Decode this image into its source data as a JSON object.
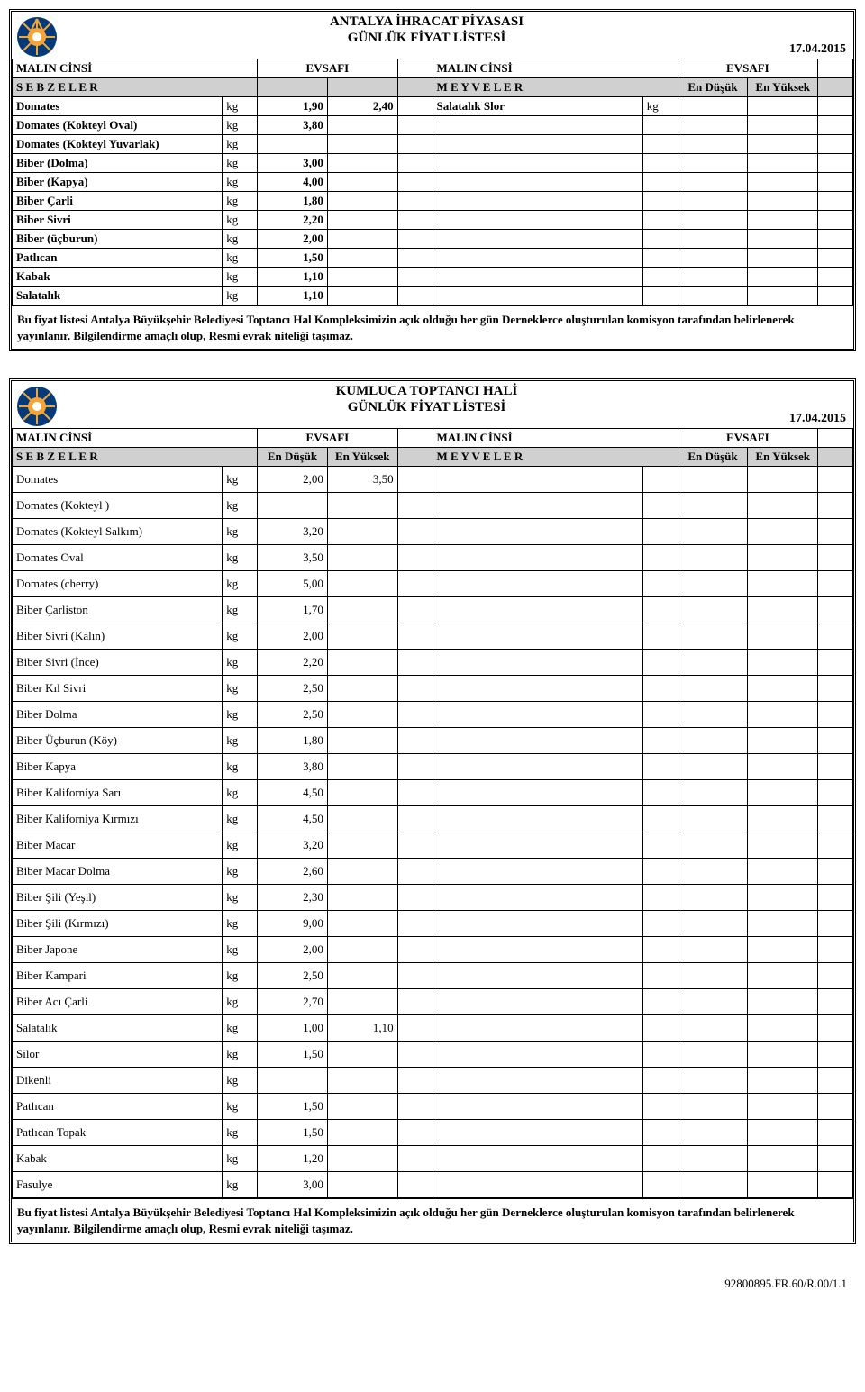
{
  "colors": {
    "bg": "#ffffff",
    "grey": "#d0d0d0",
    "border": "#000000",
    "text": "#000000",
    "logo_outer": "#043a7a",
    "logo_inner": "#f4a535",
    "logo_center": "#ffffff"
  },
  "panel1": {
    "title_line1": "ANTALYA İHRACAT PİYASASI",
    "title_line2": "GÜNLÜK FİYAT LİSTESİ",
    "date": "17.04.2015",
    "left_header": "MALIN CİNSİ",
    "evsafi": "EVSAFI",
    "right_header": "MALIN CİNSİ",
    "sebzeler": "S E B Z E L E R",
    "meyveler": "M E Y V E L E R",
    "en_dusuk": "En Düşük",
    "en_yuksek": "En Yüksek",
    "rows_left": [
      {
        "name": "Domates",
        "unit": "kg",
        "low": "1,90",
        "high": "2,40"
      },
      {
        "name": "Domates (Kokteyl Oval)",
        "unit": "kg",
        "low": "3,80",
        "high": ""
      },
      {
        "name": "Domates (Kokteyl Yuvarlak)",
        "unit": "kg",
        "low": "",
        "high": ""
      },
      {
        "name": "Biber (Dolma)",
        "unit": "kg",
        "low": "3,00",
        "high": ""
      },
      {
        "name": "Biber (Kapya)",
        "unit": "kg",
        "low": "4,00",
        "high": ""
      },
      {
        "name": "Biber Çarli",
        "unit": "kg",
        "low": "1,80",
        "high": ""
      },
      {
        "name": "Biber Sivri",
        "unit": "kg",
        "low": "2,20",
        "high": ""
      },
      {
        "name": "Biber (üçburun)",
        "unit": "kg",
        "low": "2,00",
        "high": ""
      },
      {
        "name": "Patlıcan",
        "unit": "kg",
        "low": "1,50",
        "high": ""
      },
      {
        "name": "Kabak",
        "unit": "kg",
        "low": "1,10",
        "high": ""
      },
      {
        "name": "Salatalık",
        "unit": "kg",
        "low": "1,10",
        "high": ""
      }
    ],
    "rows_right": [
      {
        "name": "Salatalık Slor",
        "unit": "kg",
        "low": "",
        "high": ""
      }
    ],
    "note": "Bu fiyat listesi Antalya Büyükşehir Belediyesi Toptancı Hal Kompleksimizin açık olduğu her gün Derneklerce oluşturulan komisyon tarafından belirlenerek yayınlanır. Bilgilendirme amaçlı olup, Resmi evrak niteliği taşımaz."
  },
  "panel2": {
    "title_line1": "KUMLUCA TOPTANCI HALİ",
    "title_line2": "GÜNLÜK FİYAT LİSTESİ",
    "date": "17.04.2015",
    "left_header": "MALIN CİNSİ",
    "evsafi": "EVSAFI",
    "right_header": "MALIN CİNSİ",
    "sebzeler": "S E B Z E L E R",
    "meyveler": "M E Y V E L E R",
    "en_dusuk": "En Düşük",
    "en_yuksek": "En Yüksek",
    "rows_left": [
      {
        "name": "Domates",
        "unit": "kg",
        "low": "2,00",
        "high": "3,50"
      },
      {
        "name": "Domates (Kokteyl )",
        "unit": "kg",
        "low": "",
        "high": ""
      },
      {
        "name": "Domates (Kokteyl Salkım)",
        "unit": "kg",
        "low": "3,20",
        "high": ""
      },
      {
        "name": "Domates Oval",
        "unit": "kg",
        "low": "3,50",
        "high": ""
      },
      {
        "name": "Domates (cherry)",
        "unit": "kg",
        "low": "5,00",
        "high": ""
      },
      {
        "name": "Biber Çarliston",
        "unit": "kg",
        "low": "1,70",
        "high": ""
      },
      {
        "name": "Biber Sivri (Kalın)",
        "unit": "kg",
        "low": "2,00",
        "high": ""
      },
      {
        "name": "Biber Sivri (İnce)",
        "unit": "kg",
        "low": "2,20",
        "high": ""
      },
      {
        "name": "Biber Kıl Sivri",
        "unit": "kg",
        "low": "2,50",
        "high": ""
      },
      {
        "name": "Biber Dolma",
        "unit": "kg",
        "low": "2,50",
        "high": ""
      },
      {
        "name": "Biber Üçburun (Köy)",
        "unit": "kg",
        "low": "1,80",
        "high": ""
      },
      {
        "name": "Biber Kapya",
        "unit": "kg",
        "low": "3,80",
        "high": ""
      },
      {
        "name": "Biber Kaliforniya Sarı",
        "unit": "kg",
        "low": "4,50",
        "high": ""
      },
      {
        "name": "Biber Kaliforniya Kırmızı",
        "unit": "kg",
        "low": "4,50",
        "high": ""
      },
      {
        "name": "Biber Macar",
        "unit": "kg",
        "low": "3,20",
        "high": ""
      },
      {
        "name": "Biber Macar Dolma",
        "unit": "kg",
        "low": "2,60",
        "high": ""
      },
      {
        "name": "Biber Şili (Yeşil)",
        "unit": "kg",
        "low": "2,30",
        "high": ""
      },
      {
        "name": "Biber Şili (Kırmızı)",
        "unit": "kg",
        "low": "9,00",
        "high": ""
      },
      {
        "name": "Biber Japone",
        "unit": "kg",
        "low": "2,00",
        "high": ""
      },
      {
        "name": "Biber Kampari",
        "unit": "kg",
        "low": "2,50",
        "high": ""
      },
      {
        "name": "Biber Acı Çarli",
        "unit": "kg",
        "low": "2,70",
        "high": ""
      },
      {
        "name": "Salatalık",
        "unit": "kg",
        "low": "1,00",
        "high": "1,10"
      },
      {
        "name": "Silor",
        "unit": "kg",
        "low": "1,50",
        "high": ""
      },
      {
        "name": "Dikenli",
        "unit": "kg",
        "low": "",
        "high": ""
      },
      {
        "name": "Patlıcan",
        "unit": "kg",
        "low": "1,50",
        "high": ""
      },
      {
        "name": "Patlıcan Topak",
        "unit": "kg",
        "low": "1,50",
        "high": ""
      },
      {
        "name": "Kabak",
        "unit": "kg",
        "low": "1,20",
        "high": ""
      },
      {
        "name": "Fasulye",
        "unit": "kg",
        "low": "3,00",
        "high": ""
      }
    ],
    "note": "Bu fiyat listesi Antalya Büyükşehir Belediyesi Toptancı Hal Kompleksimizin açık olduğu her gün Derneklerce oluşturulan komisyon tarafından belirlenerek yayınlanır. Bilgilendirme amaçlı olup, Resmi evrak niteliği taşımaz."
  },
  "doc_ref": "92800895.FR.60/R.00/1.1"
}
